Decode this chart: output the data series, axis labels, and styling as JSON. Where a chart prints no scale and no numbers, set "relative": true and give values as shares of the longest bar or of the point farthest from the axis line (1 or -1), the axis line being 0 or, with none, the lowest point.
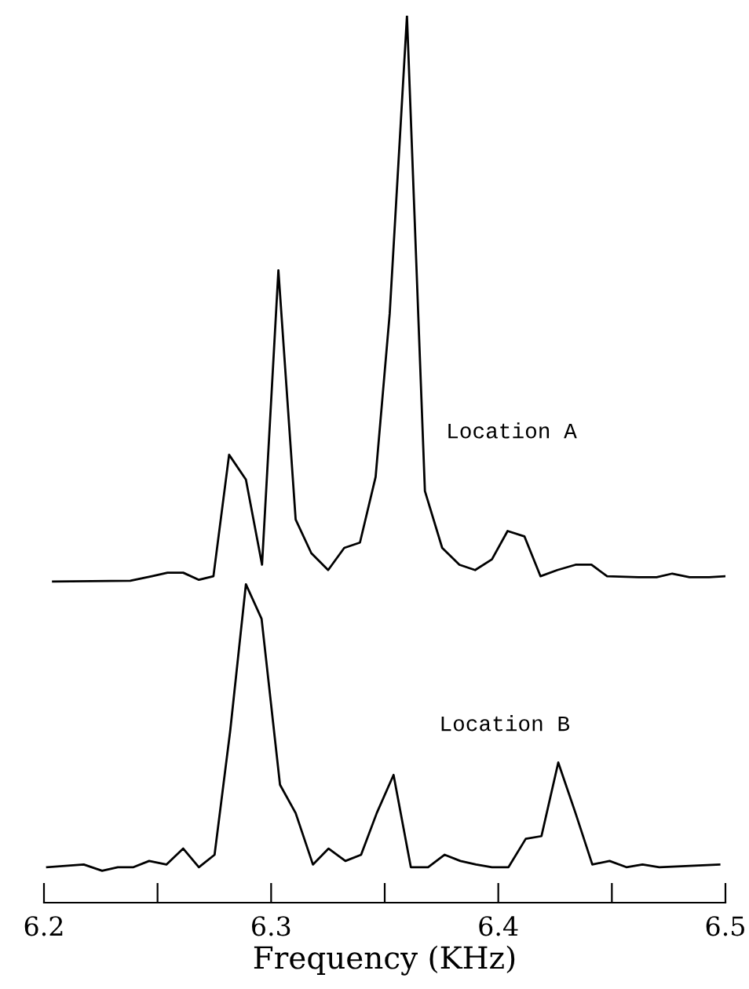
{
  "chart_data": {
    "type": "line",
    "relative": true,
    "xlim": [
      6.2,
      6.5
    ],
    "xticks": [
      6.2,
      {
        "value": 6.25,
        "label": null
      },
      6.3,
      {
        "value": 6.35,
        "label": null
      },
      6.4,
      {
        "value": 6.45,
        "label": null
      },
      6.5
    ],
    "xlabel": "Frequency (KHz)",
    "tick_labels": "x",
    "grid": false,
    "legend": false,
    "marker": "none",
    "line_style": "solid",
    "series": [
      {
        "name": "Location A",
        "color": "#000000",
        "x": [
          6.204,
          6.238,
          6.2475,
          6.2544,
          6.2613,
          6.2682,
          6.2746,
          6.2815,
          6.2889,
          6.296,
          6.3032,
          6.3108,
          6.3177,
          6.3251,
          6.3322,
          6.3391,
          6.346,
          6.3522,
          6.3598,
          6.3677,
          6.3753,
          6.3829,
          6.3898,
          6.3972,
          6.4041,
          6.4115,
          6.4186,
          6.426,
          6.434,
          6.441,
          6.4479,
          6.4617,
          6.4697,
          6.4766,
          6.4842,
          6.4928,
          6.5
        ],
        "values": [
          0.362,
          0.363,
          0.368,
          0.372,
          0.372,
          0.364,
          0.368,
          0.505,
          0.477,
          0.381,
          0.713,
          0.432,
          0.394,
          0.375,
          0.4,
          0.406,
          0.48,
          0.664,
          1,
          0.464,
          0.4,
          0.381,
          0.375,
          0.387,
          0.419,
          0.413,
          0.368,
          0.375,
          0.381,
          0.381,
          0.368,
          0.367,
          0.367,
          0.371,
          0.367,
          0.367,
          0.368
        ]
      },
      {
        "name": "Location B",
        "color": "#000000",
        "x": [
          6.2014,
          6.2175,
          6.2256,
          6.2325,
          6.2394,
          6.2463,
          6.2539,
          6.2613,
          6.2682,
          6.2751,
          6.282,
          6.2889,
          6.2958,
          6.3039,
          6.3108,
          6.3184,
          6.3253,
          6.3327,
          6.3396,
          6.3465,
          6.3539,
          6.3615,
          6.3691,
          6.3764,
          6.3833,
          6.3902,
          6.3972,
          6.4045,
          6.4121,
          6.419,
          6.4264,
          6.434,
          6.4414,
          6.449,
          6.4564,
          6.4635,
          6.4709,
          6.4973
        ],
        "values": [
          0.04,
          0.043,
          0.036,
          0.04,
          0.04,
          0.047,
          0.043,
          0.061,
          0.04,
          0.054,
          0.194,
          0.359,
          0.32,
          0.133,
          0.101,
          0.043,
          0.061,
          0.047,
          0.054,
          0.101,
          0.144,
          0.04,
          0.04,
          0.054,
          0.047,
          0.043,
          0.04,
          0.04,
          0.072,
          0.075,
          0.158,
          0.101,
          0.043,
          0.047,
          0.04,
          0.043,
          0.04,
          0.043
        ]
      }
    ]
  }
}
